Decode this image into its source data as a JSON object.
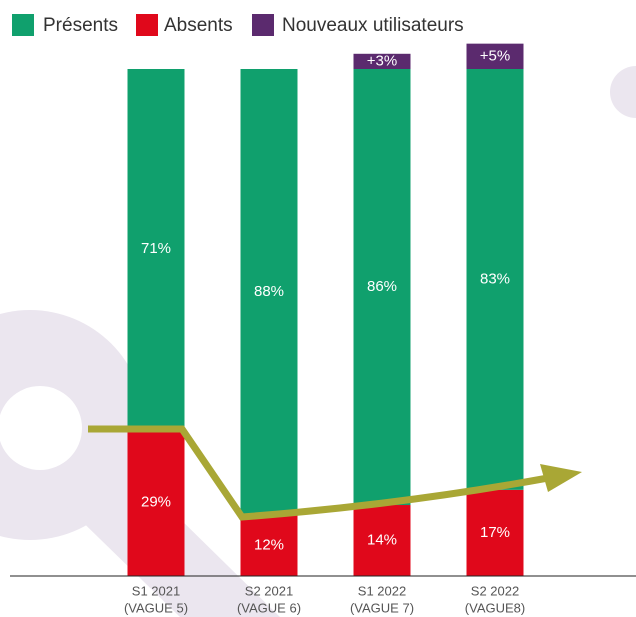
{
  "chart_data": {
    "type": "bar",
    "stacked": true,
    "categories": [
      [
        "S1 2021",
        "(VAGUE 5)"
      ],
      [
        "S2 2021",
        "(VAGUE 6)"
      ],
      [
        "S1 2022",
        "(VAGUE 7)"
      ],
      [
        "S2 2022",
        "(VAGUE8)"
      ]
    ],
    "series": [
      {
        "name": "Absents",
        "color": "#e0081b",
        "values": [
          29,
          12,
          14,
          17
        ],
        "value_labels": [
          "29%",
          "12%",
          "14%",
          "17%"
        ]
      },
      {
        "name": "Présents",
        "color": "#10a06d",
        "values": [
          71,
          88,
          86,
          83
        ],
        "value_labels": [
          "71%",
          "88%",
          "86%",
          "83%"
        ]
      },
      {
        "name": "Nouveaux utilisateurs",
        "color": "#5b2a6e",
        "values": [
          null,
          null,
          3,
          5
        ],
        "value_labels": [
          null,
          null,
          "+3%",
          "+5%"
        ]
      }
    ],
    "legend_order": [
      "Présents",
      "Absents",
      "Nouveaux utilisateurs"
    ]
  }
}
